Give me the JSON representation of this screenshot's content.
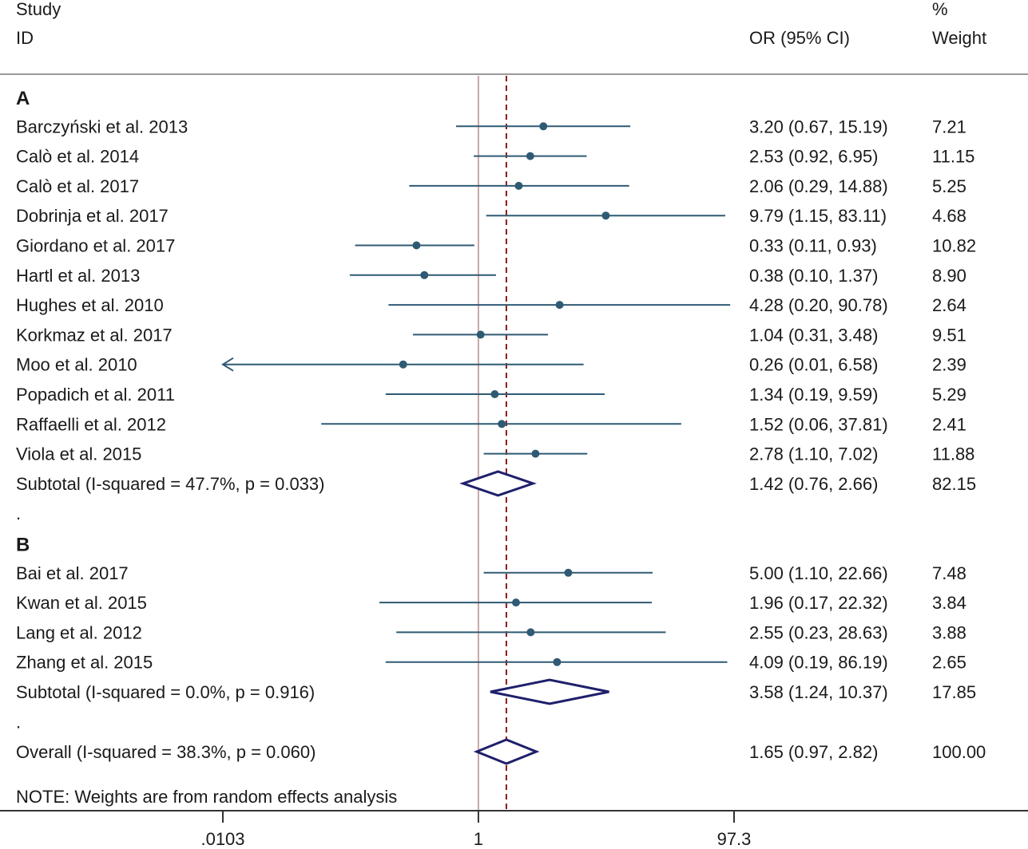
{
  "chart_data": {
    "type": "forest",
    "header": {
      "study_line1": "Study",
      "study_line2": "ID",
      "or_label": "OR (95% CI)",
      "weight_line1": "%",
      "weight_line2": "Weight"
    },
    "groups": [
      {
        "label": "A",
        "studies": [
          {
            "name": "Barczyński et al. 2013",
            "or": 3.2,
            "lo": 0.67,
            "hi": 15.19,
            "or_text": "3.20 (0.67, 15.19)",
            "weight": "7.21"
          },
          {
            "name": "Calò et al. 2014",
            "or": 2.53,
            "lo": 0.92,
            "hi": 6.95,
            "or_text": "2.53 (0.92, 6.95)",
            "weight": "11.15"
          },
          {
            "name": "Calò et al. 2017",
            "or": 2.06,
            "lo": 0.29,
            "hi": 14.88,
            "or_text": "2.06 (0.29, 14.88)",
            "weight": "5.25"
          },
          {
            "name": "Dobrinja et al. 2017",
            "or": 9.79,
            "lo": 1.15,
            "hi": 83.11,
            "or_text": "9.79 (1.15, 83.11)",
            "weight": "4.68"
          },
          {
            "name": "Giordano et al. 2017",
            "or": 0.33,
            "lo": 0.11,
            "hi": 0.93,
            "or_text": "0.33 (0.11, 0.93)",
            "weight": "10.82"
          },
          {
            "name": "Hartl et al. 2013",
            "or": 0.38,
            "lo": 0.1,
            "hi": 1.37,
            "or_text": "0.38 (0.10, 1.37)",
            "weight": "8.90"
          },
          {
            "name": "Hughes et al. 2010",
            "or": 4.28,
            "lo": 0.2,
            "hi": 90.78,
            "or_text": "4.28 (0.20, 90.78)",
            "weight": "2.64"
          },
          {
            "name": "Korkmaz et al. 2017",
            "or": 1.04,
            "lo": 0.31,
            "hi": 3.48,
            "or_text": "1.04 (0.31, 3.48)",
            "weight": "9.51"
          },
          {
            "name": "Moo et al. 2010",
            "or": 0.26,
            "lo": 0.01,
            "hi": 6.58,
            "or_text": "0.26 (0.01, 6.58)",
            "weight": "2.39"
          },
          {
            "name": "Popadich et al. 2011",
            "or": 1.34,
            "lo": 0.19,
            "hi": 9.59,
            "or_text": "1.34 (0.19, 9.59)",
            "weight": "5.29"
          },
          {
            "name": "Raffaelli et al. 2012",
            "or": 1.52,
            "lo": 0.06,
            "hi": 37.81,
            "or_text": "1.52 (0.06, 37.81)",
            "weight": "2.41"
          },
          {
            "name": "Viola et al. 2015",
            "or": 2.78,
            "lo": 1.1,
            "hi": 7.02,
            "or_text": "2.78 (1.10, 7.02)",
            "weight": "11.88"
          }
        ],
        "subtotal": {
          "label": "Subtotal  (I-squared = 47.7%, p = 0.033)",
          "or": 1.42,
          "lo": 0.76,
          "hi": 2.66,
          "or_text": "1.42 (0.76, 2.66)",
          "weight": "82.15"
        },
        "separator": "."
      },
      {
        "label": "B",
        "studies": [
          {
            "name": "Bai et al. 2017",
            "or": 5.0,
            "lo": 1.1,
            "hi": 22.66,
            "or_text": "5.00 (1.10, 22.66)",
            "weight": "7.48"
          },
          {
            "name": "Kwan et al. 2015",
            "or": 1.96,
            "lo": 0.17,
            "hi": 22.32,
            "or_text": "1.96 (0.17, 22.32)",
            "weight": "3.84"
          },
          {
            "name": "Lang et al. 2012",
            "or": 2.55,
            "lo": 0.23,
            "hi": 28.63,
            "or_text": "2.55 (0.23, 28.63)",
            "weight": "3.88"
          },
          {
            "name": "Zhang et al. 2015",
            "or": 4.09,
            "lo": 0.19,
            "hi": 86.19,
            "or_text": "4.09 (0.19, 86.19)",
            "weight": "2.65"
          }
        ],
        "subtotal": {
          "label": "Subtotal  (I-squared = 0.0%, p = 0.916)",
          "or": 3.58,
          "lo": 1.24,
          "hi": 10.37,
          "or_text": "3.58 (1.24, 10.37)",
          "weight": "17.85"
        },
        "separator": "."
      }
    ],
    "overall": {
      "label": "Overall  (I-squared = 38.3%, p = 0.060)",
      "or": 1.65,
      "lo": 0.97,
      "hi": 2.82,
      "or_text": "1.65 (0.97, 2.82)",
      "weight": "100.00"
    },
    "note": "NOTE: Weights are from random effects analysis",
    "xaxis": {
      "scale": "log",
      "ticks": [
        0.0103,
        1,
        97.3
      ],
      "tick_labels": [
        ".0103",
        "1",
        "97.3"
      ],
      "range": [
        0.0103,
        97.3
      ]
    },
    "null_line": 1,
    "colors": {
      "ci": "#2f5a73",
      "point": "#2f5a73",
      "diamond": "#1f1f6b",
      "null": "#c8a8a8",
      "overall": "#8b1a1a",
      "axis": "#333333"
    }
  }
}
